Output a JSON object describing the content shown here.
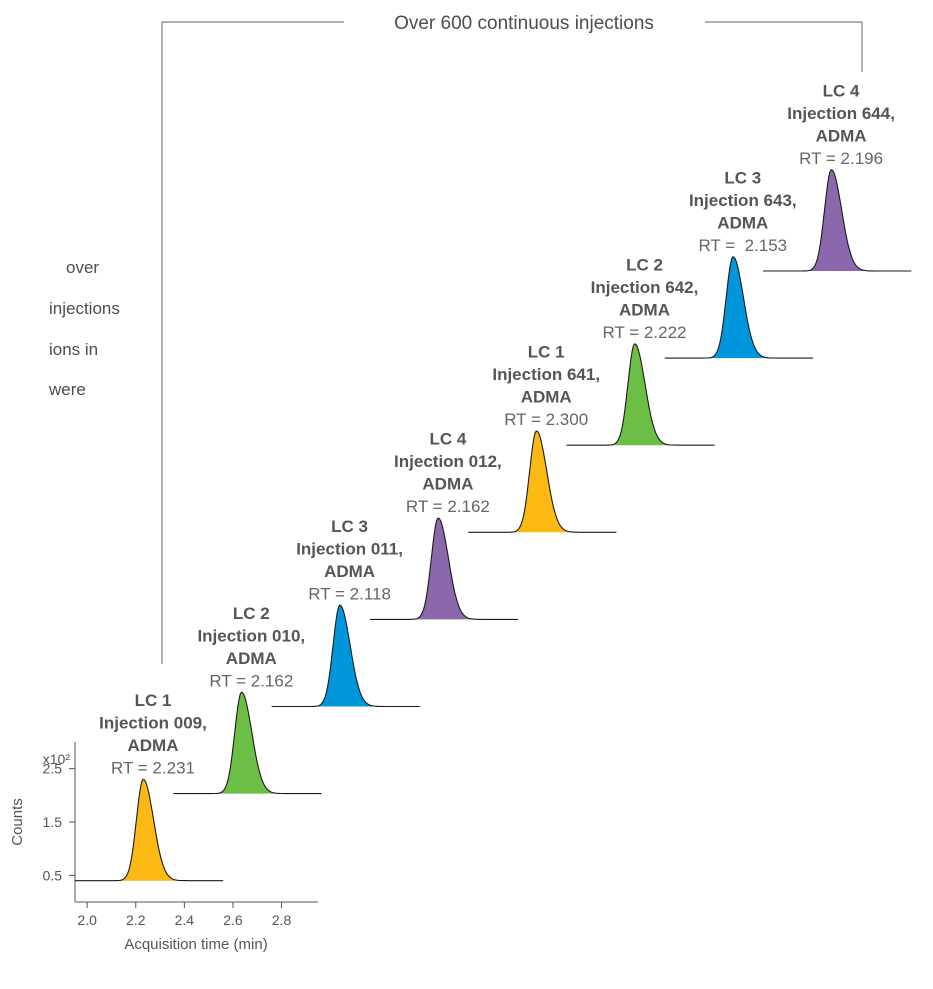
{
  "side_text": [
    "over",
    "injections",
    "ions in",
    "were"
  ],
  "bracket": {
    "label": "Over 600 continuous injections"
  },
  "colors": {
    "yellow": "#FDB913",
    "green": "#6DBE45",
    "blue": "#0096DB",
    "purple": "#8B67AB",
    "line": "#808080",
    "text": "#555555"
  },
  "chart_data": {
    "type": "line",
    "xlabel": "Acquisition time (min)",
    "ylabel": "Counts",
    "y_multiplier": "x10²",
    "x_ticks": [
      "2.0",
      "2.2",
      "2.4",
      "2.6",
      "2.8"
    ],
    "y_ticks": [
      "0.5",
      "1.5",
      "2.5"
    ],
    "xlim": [
      1.95,
      2.95
    ],
    "ylim": [
      0.0,
      3.0
    ],
    "grid": false,
    "series": [
      {
        "lc": "LC 1",
        "injection": "Injection 009,",
        "analyte": "ADMA",
        "rt": "RT = 2.231",
        "rt_value": 2.231,
        "color": "yellow",
        "peak_height": 2.1,
        "baseline": 0.4
      },
      {
        "lc": "LC 2",
        "injection": "Injection 010,",
        "analyte": "ADMA",
        "rt": "RT = 2.162",
        "rt_value": 2.162,
        "color": "green",
        "peak_height": 2.1,
        "baseline": 0.4
      },
      {
        "lc": "LC 3",
        "injection": "Injection 011,",
        "analyte": "ADMA",
        "rt": "RT = 2.118",
        "rt_value": 2.118,
        "color": "blue",
        "peak_height": 2.1,
        "baseline": 0.4
      },
      {
        "lc": "LC 4",
        "injection": "Injection 012,",
        "analyte": "ADMA",
        "rt": "RT = 2.162",
        "rt_value": 2.162,
        "color": "purple",
        "peak_height": 2.1,
        "baseline": 0.4
      },
      {
        "lc": "LC 1",
        "injection": "Injection 641,",
        "analyte": "ADMA",
        "rt": "RT = 2.300",
        "rt_value": 2.3,
        "color": "yellow",
        "peak_height": 2.1,
        "baseline": 0.4
      },
      {
        "lc": "LC 2",
        "injection": "Injection 642,",
        "analyte": "ADMA",
        "rt": "RT = 2.222",
        "rt_value": 2.222,
        "color": "green",
        "peak_height": 2.1,
        "baseline": 0.4
      },
      {
        "lc": "LC 3",
        "injection": "Injection 643,",
        "analyte": "ADMA",
        "rt": "RT =  2.153",
        "rt_value": 2.153,
        "color": "blue",
        "peak_height": 2.1,
        "baseline": 0.4
      },
      {
        "lc": "LC 4",
        "injection": "Injection 644,",
        "analyte": "ADMA",
        "rt": "RT = 2.196",
        "rt_value": 2.196,
        "color": "purple",
        "peak_height": 2.1,
        "baseline": 0.4
      }
    ]
  }
}
